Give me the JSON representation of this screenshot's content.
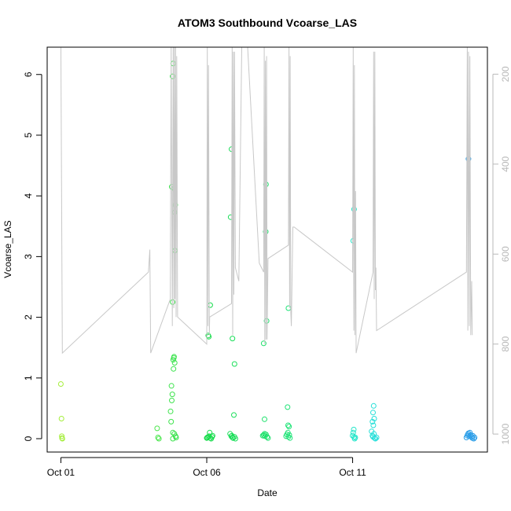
{
  "chart_data": {
    "type": "scatter",
    "title": "ATOM3 Southbound Vcoarse_LAS",
    "xlabel": "Date",
    "ylabel": "Vcoarse_LAS",
    "x_ticks": [
      "Oct 01",
      "Oct 06",
      "Oct 11"
    ],
    "x_tick_days": [
      1,
      6,
      11
    ],
    "xlim_days": [
      0.53,
      15.62
    ],
    "ylim": [
      -0.22,
      6.45
    ],
    "y_ticks": [
      0,
      1,
      2,
      3,
      4,
      5,
      6
    ],
    "y2_ticks": [
      200,
      400,
      600,
      800,
      1000
    ],
    "y2lim": [
      1040,
      140
    ],
    "grid": false,
    "legend": "none",
    "colors": {
      "line": "#c8c8c8",
      "axis": "#000000",
      "axis_right": "#b8b8b8"
    },
    "color_stops": [
      {
        "day": 1,
        "color": "#a6ee3c"
      },
      {
        "day": 4,
        "color": "#55e84e"
      },
      {
        "day": 6,
        "color": "#17dc4a"
      },
      {
        "day": 9,
        "color": "#1fe47a"
      },
      {
        "day": 11,
        "color": "#22e6c8"
      },
      {
        "day": 12.5,
        "color": "#26d7ea"
      },
      {
        "day": 15,
        "color": "#2a9de8"
      }
    ],
    "series": [
      {
        "type": "scatter",
        "points": [
          [
            1.0,
            0.9
          ],
          [
            1.02,
            0.33
          ],
          [
            1.03,
            0.04
          ],
          [
            1.04,
            0.01
          ],
          [
            1.05,
            0.0
          ],
          [
            4.3,
            0.17
          ],
          [
            4.33,
            0.02
          ],
          [
            4.36,
            0.0
          ],
          [
            4.8,
            4.15
          ],
          [
            4.88,
            4.12
          ],
          [
            4.92,
            3.85
          ],
          [
            4.9,
            3.73
          ],
          [
            4.91,
            3.1
          ],
          [
            4.83,
            2.25
          ],
          [
            4.85,
            1.3
          ],
          [
            4.87,
            1.33
          ],
          [
            4.88,
            1.35
          ],
          [
            4.9,
            1.25
          ],
          [
            4.86,
            1.15
          ],
          [
            4.79,
            0.87
          ],
          [
            4.82,
            0.73
          ],
          [
            4.8,
            0.63
          ],
          [
            4.76,
            0.45
          ],
          [
            4.78,
            0.28
          ],
          [
            4.84,
            0.1
          ],
          [
            4.89,
            0.08
          ],
          [
            4.93,
            0.04
          ],
          [
            4.95,
            0.02
          ],
          [
            4.84,
            0.0
          ],
          [
            4.85,
            6.18
          ],
          [
            4.83,
            5.97
          ],
          [
            6.05,
            1.7
          ],
          [
            6.07,
            1.68
          ],
          [
            6.12,
            2.2
          ],
          [
            6.02,
            0.02
          ],
          [
            6.05,
            0.03
          ],
          [
            6.08,
            0.04
          ],
          [
            6.1,
            0.1
          ],
          [
            6.12,
            0.01
          ],
          [
            6.15,
            0.0
          ],
          [
            6.18,
            0.03
          ],
          [
            6.2,
            0.05
          ],
          [
            6.0,
            0.01
          ],
          [
            6.85,
            4.77
          ],
          [
            6.82,
            3.65
          ],
          [
            6.88,
            1.65
          ],
          [
            6.95,
            1.23
          ],
          [
            6.93,
            0.39
          ],
          [
            6.8,
            0.08
          ],
          [
            6.84,
            0.04
          ],
          [
            6.86,
            0.05
          ],
          [
            6.88,
            0.02
          ],
          [
            6.9,
            0.01
          ],
          [
            6.95,
            0.03
          ],
          [
            6.98,
            0.0
          ],
          [
            7.95,
            1.57
          ],
          [
            7.98,
            0.32
          ],
          [
            8.03,
            4.19
          ],
          [
            8.02,
            3.41
          ],
          [
            8.05,
            1.94
          ],
          [
            7.92,
            0.05
          ],
          [
            7.95,
            0.06
          ],
          [
            7.98,
            0.08
          ],
          [
            8.0,
            0.04
          ],
          [
            8.03,
            0.07
          ],
          [
            8.07,
            0.03
          ],
          [
            8.1,
            0.01
          ],
          [
            8.8,
            2.15
          ],
          [
            8.77,
            0.52
          ],
          [
            8.79,
            0.22
          ],
          [
            8.82,
            0.2
          ],
          [
            8.72,
            0.04
          ],
          [
            8.75,
            0.07
          ],
          [
            8.78,
            0.1
          ],
          [
            8.8,
            0.03
          ],
          [
            8.83,
            0.06
          ],
          [
            8.85,
            0.01
          ],
          [
            11.02,
            3.26
          ],
          [
            11.05,
            3.78
          ],
          [
            11.0,
            0.05
          ],
          [
            11.02,
            0.1
          ],
          [
            11.04,
            0.15
          ],
          [
            11.05,
            0.03
          ],
          [
            11.07,
            0.0
          ],
          [
            11.09,
            0.02
          ],
          [
            11.72,
            0.54
          ],
          [
            11.7,
            0.43
          ],
          [
            11.74,
            0.33
          ],
          [
            11.68,
            0.28
          ],
          [
            11.71,
            0.22
          ],
          [
            11.65,
            0.12
          ],
          [
            11.68,
            0.05
          ],
          [
            11.7,
            0.03
          ],
          [
            11.73,
            0.08
          ],
          [
            11.75,
            0.01
          ],
          [
            11.78,
            0.0
          ],
          [
            11.82,
            0.02
          ],
          [
            14.97,
            4.61
          ],
          [
            14.9,
            0.02
          ],
          [
            14.93,
            0.05
          ],
          [
            14.95,
            0.07
          ],
          [
            14.97,
            0.09
          ],
          [
            15.0,
            0.04
          ],
          [
            15.02,
            0.1
          ],
          [
            15.05,
            0.06
          ],
          [
            15.08,
            0.03
          ],
          [
            15.1,
            0.01
          ],
          [
            15.12,
            0.05
          ],
          [
            15.15,
            0.0
          ],
          [
            15.18,
            0.02
          ]
        ]
      },
      {
        "type": "line",
        "axis": "right",
        "points": [
          [
            1.0,
            120
          ],
          [
            1.05,
            820
          ],
          [
            4.0,
            640
          ],
          [
            4.05,
            590
          ],
          [
            4.08,
            820
          ],
          [
            4.75,
            700
          ],
          [
            4.78,
            140
          ],
          [
            4.82,
            760
          ],
          [
            4.85,
            140
          ],
          [
            4.87,
            720
          ],
          [
            4.89,
            140
          ],
          [
            4.91,
            700
          ],
          [
            4.93,
            140
          ],
          [
            4.95,
            740
          ],
          [
            4.97,
            160
          ],
          [
            5.0,
            740
          ],
          [
            6.0,
            800
          ],
          [
            6.02,
            140
          ],
          [
            6.04,
            760
          ],
          [
            6.06,
            180
          ],
          [
            6.09,
            780
          ],
          [
            6.1,
            740
          ],
          [
            6.85,
            710
          ],
          [
            6.87,
            140
          ],
          [
            6.89,
            780
          ],
          [
            6.91,
            150
          ],
          [
            6.93,
            690
          ],
          [
            6.95,
            150
          ],
          [
            6.98,
            630
          ],
          [
            7.1,
            660
          ],
          [
            7.2,
            140
          ],
          [
            7.4,
            140
          ],
          [
            7.8,
            620
          ],
          [
            7.95,
            640
          ],
          [
            7.97,
            140
          ],
          [
            7.99,
            800
          ],
          [
            8.01,
            170
          ],
          [
            8.03,
            790
          ],
          [
            8.05,
            160
          ],
          [
            8.07,
            790
          ],
          [
            8.1,
            610
          ],
          [
            8.8,
            580
          ],
          [
            8.82,
            140
          ],
          [
            8.84,
            720
          ],
          [
            8.86,
            160
          ],
          [
            8.88,
            730
          ],
          [
            8.9,
            760
          ],
          [
            8.95,
            540
          ],
          [
            9.0,
            540
          ],
          [
            11.0,
            640
          ],
          [
            11.02,
            140
          ],
          [
            11.04,
            770
          ],
          [
            11.06,
            180
          ],
          [
            11.08,
            780
          ],
          [
            11.1,
            460
          ],
          [
            11.12,
            820
          ],
          [
            11.7,
            640
          ],
          [
            11.72,
            150
          ],
          [
            11.74,
            700
          ],
          [
            11.76,
            150
          ],
          [
            11.78,
            680
          ],
          [
            11.8,
            630
          ],
          [
            11.82,
            770
          ],
          [
            14.9,
            640
          ],
          [
            14.93,
            130
          ],
          [
            14.95,
            770
          ],
          [
            14.97,
            150
          ],
          [
            15.0,
            760
          ],
          [
            15.02,
            160
          ],
          [
            15.05,
            780
          ],
          [
            15.08,
            660
          ],
          [
            15.1,
            780
          ]
        ]
      }
    ]
  }
}
